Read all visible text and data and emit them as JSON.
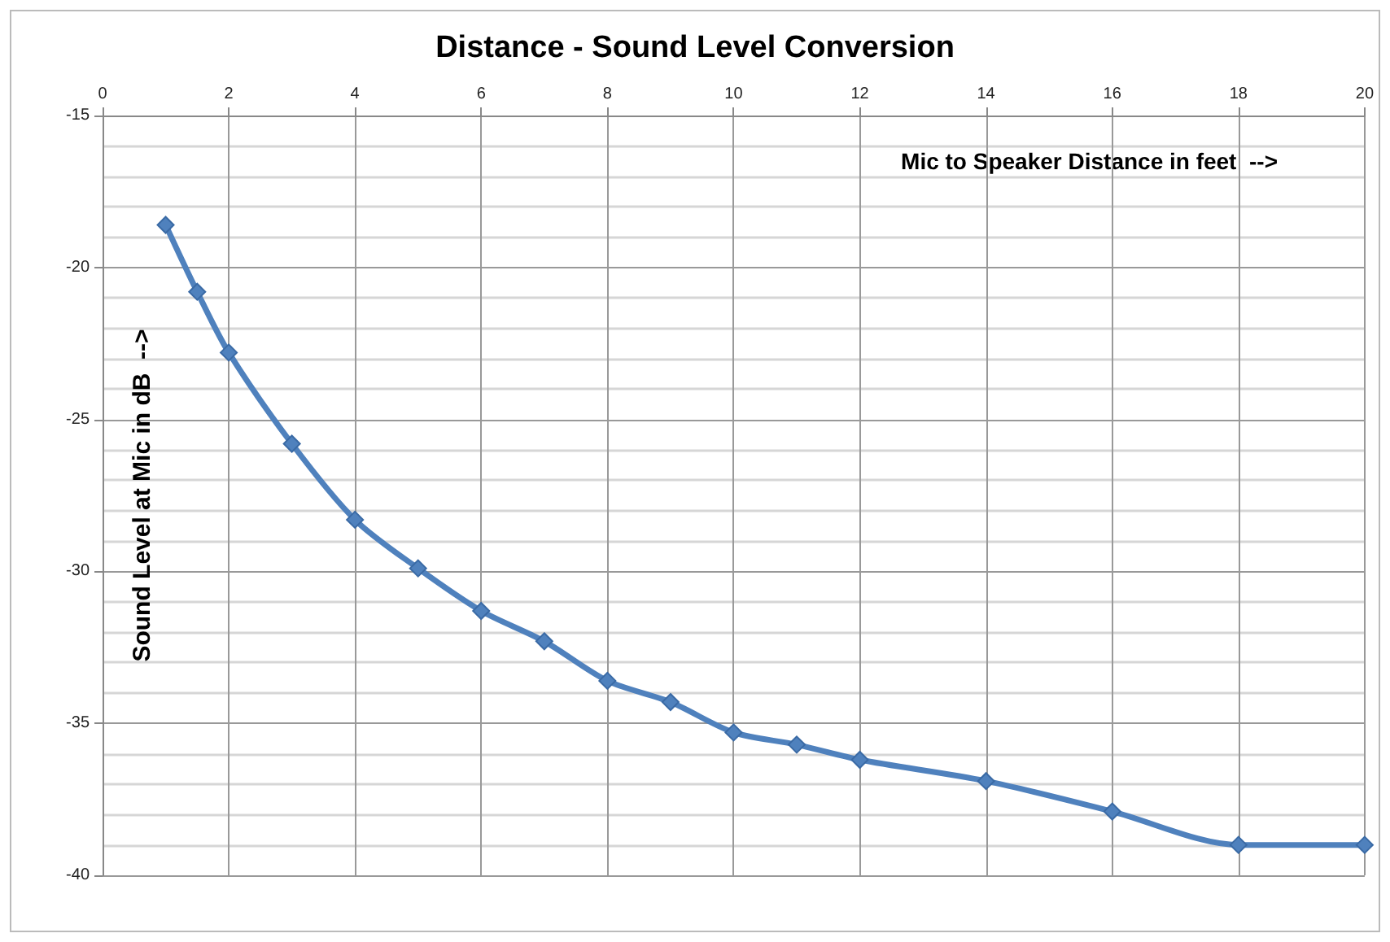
{
  "chart_data": {
    "type": "line",
    "title": "Distance - Sound Level Conversion",
    "xlabel": "Mic to Speaker Distance in feet  -->",
    "ylabel": "Sound Level at Mic in dB  -->",
    "x": [
      1,
      1.5,
      2,
      3,
      4,
      5,
      6,
      7,
      8,
      9,
      10,
      11,
      12,
      14,
      16,
      18,
      20
    ],
    "series": [
      {
        "color": "#4f81bd",
        "values": [
          -18.6,
          -20.8,
          -22.8,
          -25.8,
          -28.3,
          -29.9,
          -31.3,
          -32.3,
          -33.6,
          -34.3,
          -35.3,
          -35.7,
          -36.2,
          -36.9,
          -37.9,
          -39.0,
          -39.0
        ]
      }
    ],
    "xlim": [
      0,
      20
    ],
    "xticks": [
      0,
      2,
      4,
      6,
      8,
      10,
      12,
      14,
      16,
      18,
      20
    ],
    "ylim": [
      -40,
      -15
    ],
    "yticks": [
      -40,
      -35,
      -30,
      -25,
      -20,
      -15
    ],
    "grid": true,
    "marker": "diamond",
    "line_style": "solid"
  }
}
